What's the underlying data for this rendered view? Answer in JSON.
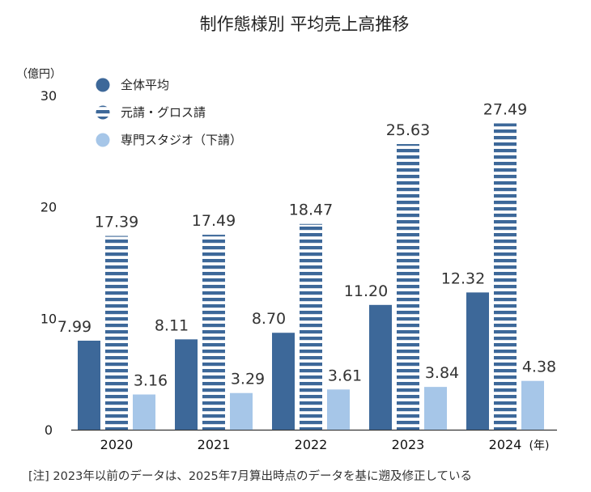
{
  "chart_data": {
    "type": "bar",
    "title": "制作態様別 平均売上高推移",
    "ylabel": "（億円）",
    "xlabel": "(年)",
    "ylim": [
      0,
      30
    ],
    "yticks": [
      0,
      10,
      20,
      30
    ],
    "grid": false,
    "legend_position": "top-left",
    "categories": [
      "2020",
      "2021",
      "2022",
      "2023",
      "2024"
    ],
    "series": [
      {
        "name": "全体平均",
        "values": [
          7.99,
          8.11,
          8.7,
          11.2,
          12.32
        ],
        "labels": [
          "7.99",
          "8.11",
          "8.70",
          "11.20",
          "12.32"
        ],
        "color": "#3d6899",
        "pattern": "solid"
      },
      {
        "name": "元請・グロス請",
        "values": [
          17.39,
          17.49,
          18.47,
          25.63,
          27.49
        ],
        "labels": [
          "17.39",
          "17.49",
          "18.47",
          "25.63",
          "27.49"
        ],
        "color": "#3d6899",
        "pattern": "horizontal-stripes"
      },
      {
        "name": "専門スタジオ（下請）",
        "values": [
          3.16,
          3.29,
          3.61,
          3.84,
          4.38
        ],
        "labels": [
          "3.16",
          "3.29",
          "3.61",
          "3.84",
          "4.38"
        ],
        "color": "#a6c6e8",
        "pattern": "solid"
      }
    ],
    "note": "[注] 2023年以前のデータは、2025年7月算出時点のデータを基に遡及修正している"
  }
}
